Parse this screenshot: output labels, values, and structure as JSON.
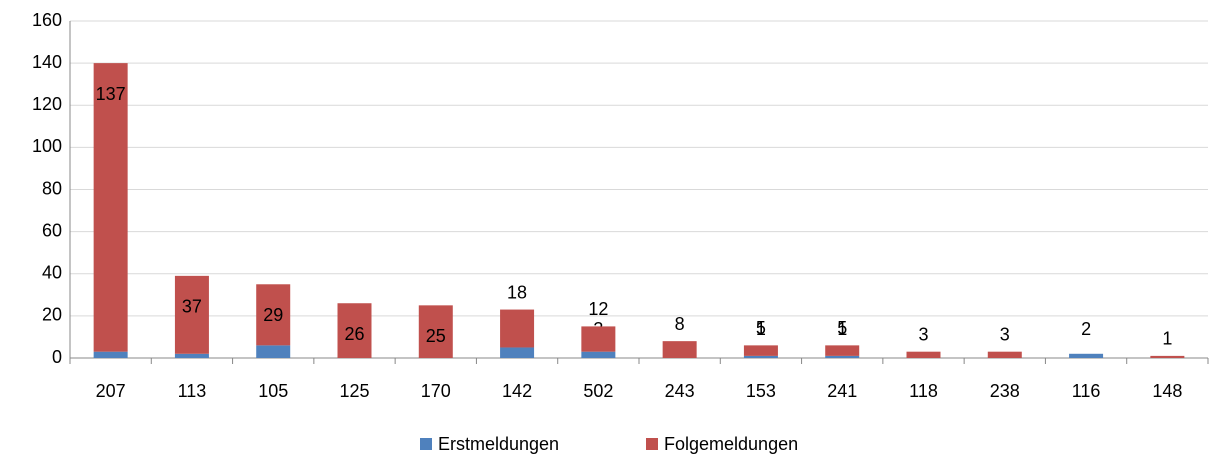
{
  "chart_data": {
    "type": "bar",
    "stacked": true,
    "categories": [
      "207",
      "113",
      "105",
      "125",
      "170",
      "142",
      "502",
      "243",
      "153",
      "241",
      "118",
      "238",
      "116",
      "148"
    ],
    "series": [
      {
        "name": "Erstmeldungen",
        "color": "#4f81bd",
        "values": [
          3,
          2,
          6,
          null,
          null,
          5,
          3,
          null,
          1,
          1,
          null,
          null,
          2,
          null
        ]
      },
      {
        "name": "Folgemeldungen",
        "color": "#c0504d",
        "values": [
          137,
          37,
          29,
          26,
          25,
          18,
          12,
          8,
          5,
          5,
          3,
          3,
          null,
          1
        ]
      }
    ],
    "ylim": [
      0,
      160
    ],
    "yticks": [
      0,
      20,
      40,
      60,
      80,
      100,
      120,
      140,
      160
    ],
    "grid": true,
    "legend": "bottom"
  }
}
